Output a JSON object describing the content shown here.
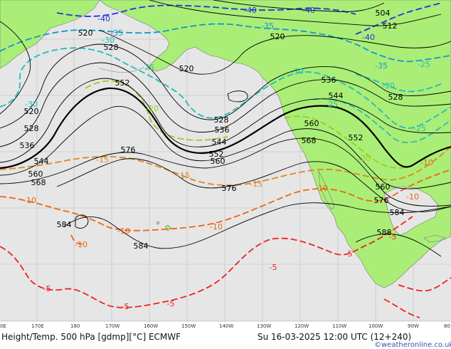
{
  "caption": {
    "left": "Height/Temp. 500 hPa [gdmp][°C] ECMWF",
    "right": "Su 16-03-2025 12:00 UTC (12+240)",
    "credit": "©weatheronline.co.uk"
  },
  "lon_ticks": [
    "0E",
    "170E",
    "180",
    "170W",
    "160W",
    "150W",
    "140W",
    "130W",
    "120W",
    "110W",
    "100W",
    "90W",
    "80"
  ],
  "colors": {
    "ocean": "#e6e6e6",
    "land": "#aaee77",
    "height_contour": "#000000",
    "temp_minus40": "#2233dd",
    "temp_minus35": "#1199cc",
    "temp_minus30": "#22bbbb",
    "temp_minus25": "#33bbaa",
    "temp_minus20": "#99cc22",
    "temp_minus15": "#dd8822",
    "temp_minus10": "#ee6611",
    "temp_minus5": "#ee2222"
  },
  "height_labels": [
    {
      "text": "504",
      "cls": "h"
    },
    {
      "text": "512",
      "cls": "h"
    },
    {
      "text": "520",
      "cls": "h"
    },
    {
      "text": "520",
      "cls": "h"
    },
    {
      "text": "520",
      "cls": "h"
    },
    {
      "text": "528",
      "cls": "h"
    },
    {
      "text": "528",
      "cls": "h"
    },
    {
      "text": "528",
      "cls": "h"
    },
    {
      "text": "528",
      "cls": "h"
    },
    {
      "text": "536",
      "cls": "h"
    },
    {
      "text": "536",
      "cls": "h"
    },
    {
      "text": "536",
      "cls": "h"
    },
    {
      "text": "544",
      "cls": "h"
    },
    {
      "text": "544",
      "cls": "h"
    },
    {
      "text": "544",
      "cls": "h"
    },
    {
      "text": "552",
      "cls": "h"
    },
    {
      "text": "552",
      "cls": "h"
    },
    {
      "text": "552",
      "cls": "h"
    },
    {
      "text": "560",
      "cls": "h"
    },
    {
      "text": "560",
      "cls": "h"
    },
    {
      "text": "560",
      "cls": "h"
    },
    {
      "text": "560",
      "cls": "h"
    },
    {
      "text": "568",
      "cls": "h"
    },
    {
      "text": "568",
      "cls": "h"
    },
    {
      "text": "576",
      "cls": "h"
    },
    {
      "text": "576",
      "cls": "h"
    },
    {
      "text": "576",
      "cls": "h"
    },
    {
      "text": "584",
      "cls": "h"
    },
    {
      "text": "584",
      "cls": "h"
    },
    {
      "text": "584",
      "cls": "h"
    },
    {
      "text": "588",
      "cls": "h"
    },
    {
      "text": "520",
      "cls": "h"
    }
  ],
  "temp_labels": [
    {
      "text": "-40"
    },
    {
      "text": "-40"
    },
    {
      "text": "-40"
    },
    {
      "text": "-40"
    },
    {
      "text": "-35"
    },
    {
      "text": "-35"
    },
    {
      "text": "-35"
    },
    {
      "text": "-30"
    },
    {
      "text": "-30"
    },
    {
      "text": "-30"
    },
    {
      "text": "-30"
    },
    {
      "text": "-25"
    },
    {
      "text": "-25"
    },
    {
      "text": "-25"
    },
    {
      "text": "-25"
    },
    {
      "text": "-20"
    },
    {
      "text": "-20"
    },
    {
      "text": "-15"
    },
    {
      "text": "-15"
    },
    {
      "text": "-15"
    },
    {
      "text": "-10"
    },
    {
      "text": "-10"
    },
    {
      "text": "-10"
    },
    {
      "text": "-10"
    },
    {
      "text": "-10"
    },
    {
      "text": "-10"
    },
    {
      "text": "-10"
    },
    {
      "text": "-5"
    },
    {
      "text": "-5"
    },
    {
      "text": "-5"
    },
    {
      "text": "-5"
    },
    {
      "text": "-5"
    },
    {
      "text": "-5"
    }
  ]
}
